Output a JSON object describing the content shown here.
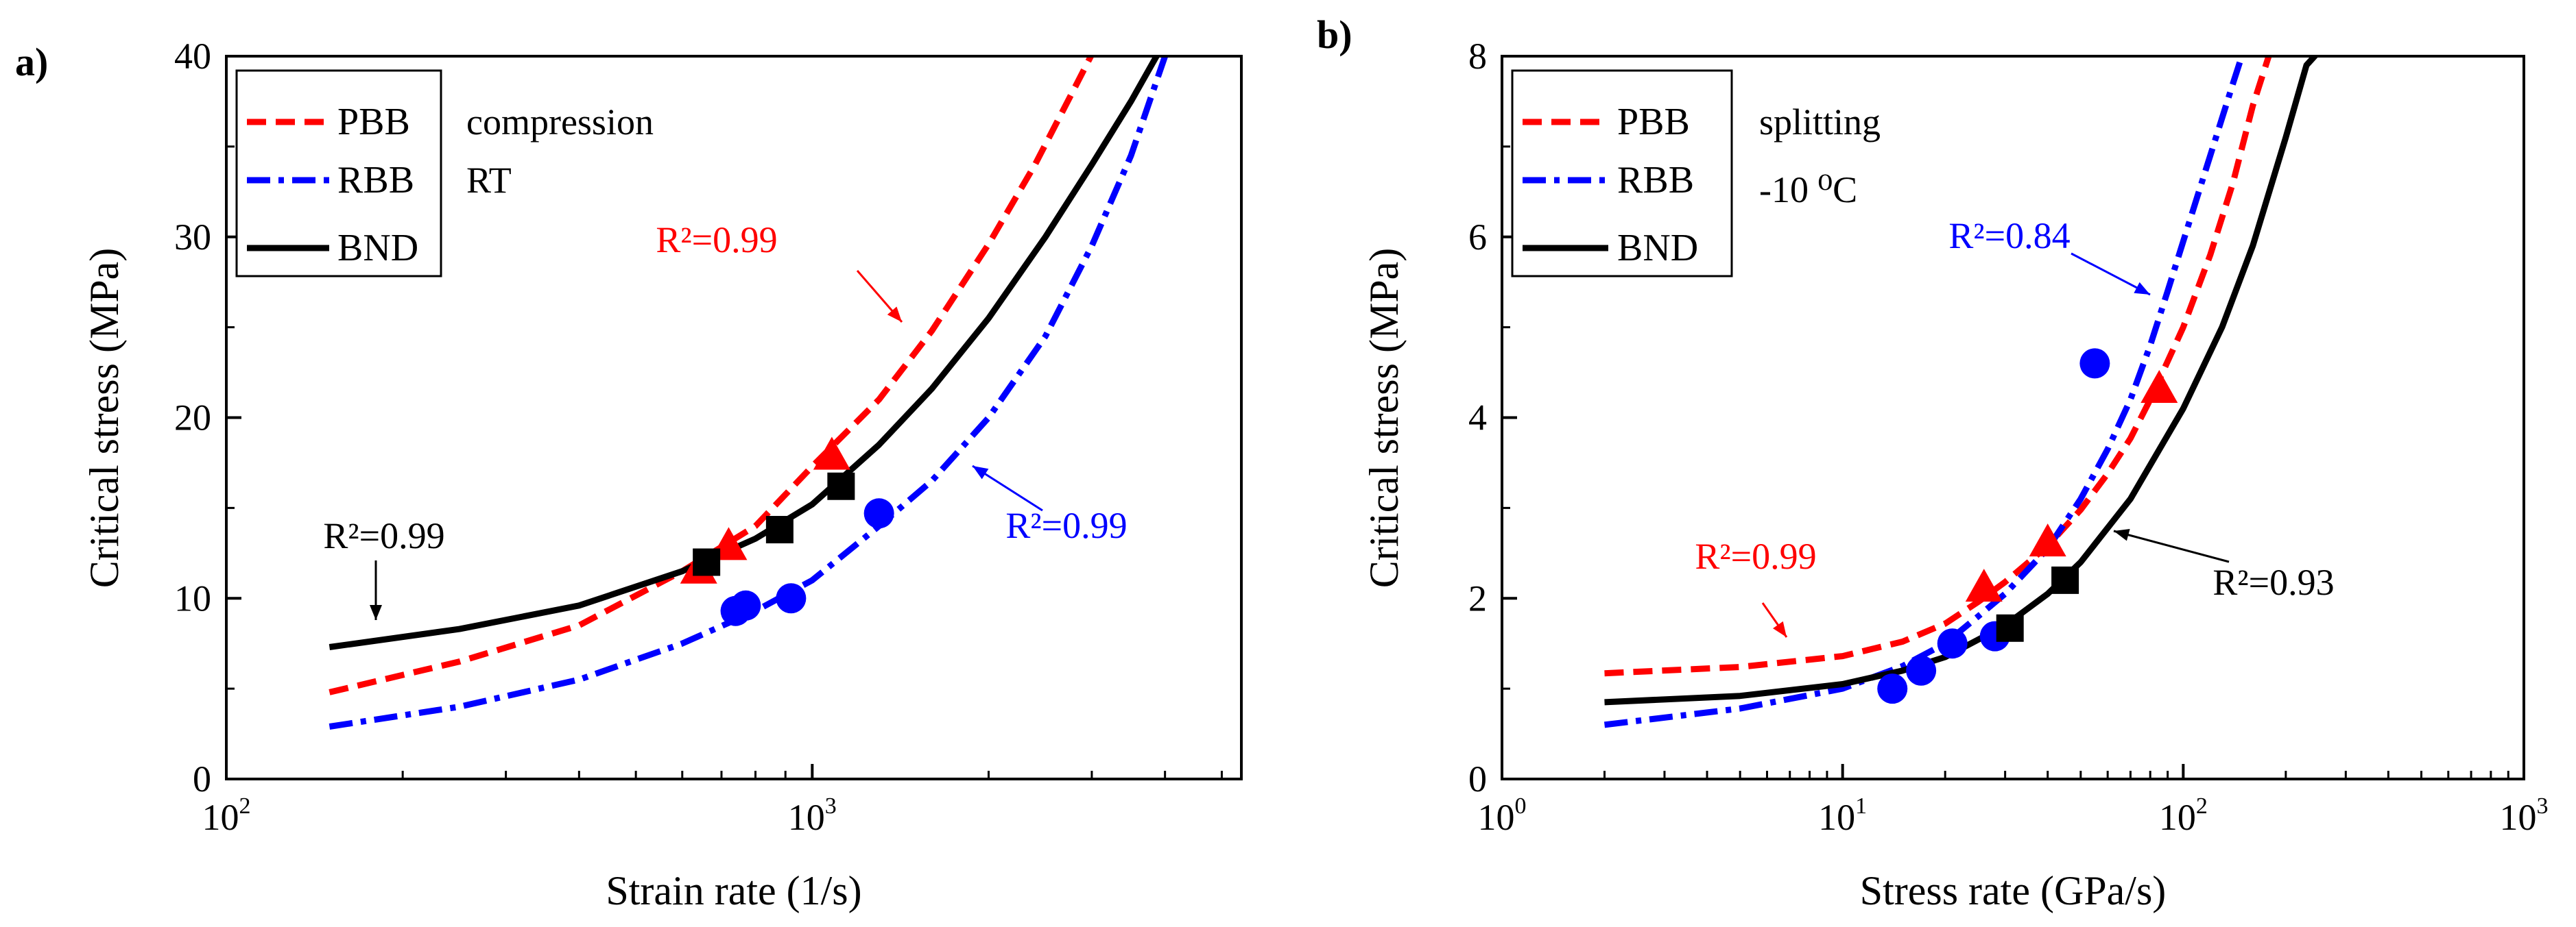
{
  "colors": {
    "PBB": "#ff0000",
    "RBB": "#0000ff",
    "BND": "#000000"
  },
  "chart_data": [
    {
      "type": "line",
      "panel_label": "a)",
      "xlabel": "Strain rate (1/s)",
      "ylabel": "Critical stress (MPa)",
      "xscale": "log",
      "xlim": [
        100,
        5400
      ],
      "ylim": [
        0,
        40
      ],
      "x_ticks": [
        {
          "base": "10",
          "exp": "2",
          "value": 100
        },
        {
          "base": "10",
          "exp": "3",
          "value": 1000
        }
      ],
      "y_ticks": [
        "0",
        "10",
        "20",
        "30",
        "40"
      ],
      "legend": {
        "entries": [
          "PBB",
          "RBB",
          "BND"
        ],
        "placement": "top-left"
      },
      "notes": [
        "compression",
        "RT"
      ],
      "series": [
        {
          "name": "PBB",
          "style": "dash",
          "fit": {
            "x": [
              150,
              250,
              400,
              600,
              800,
              1000,
              1300,
              1600,
              2000,
              2400,
              2800,
              3100
            ],
            "y": [
              4.8,
              6.5,
              8.5,
              11.5,
              14.0,
              17.3,
              21.0,
              24.8,
              29.6,
              34.0,
              38.2,
              41.0
            ]
          },
          "points": {
            "x": [
              640,
              720,
              1080
            ],
            "y": [
              11.5,
              12.8,
              17.8
            ]
          },
          "r2": "R²=0.99"
        },
        {
          "name": "RBB",
          "style": "dashdot",
          "fit": {
            "x": [
              150,
              250,
              400,
              600,
              800,
              1000,
              1300,
              1600,
              2000,
              2500,
              3000,
              3500,
              4000
            ],
            "y": [
              2.9,
              4.0,
              5.5,
              7.5,
              9.3,
              11.0,
              14.0,
              16.5,
              20.0,
              24.5,
              29.5,
              34.5,
              40.0
            ]
          },
          "points": {
            "x": [
              740,
              770,
              920,
              1300
            ],
            "y": [
              9.3,
              9.6,
              10.0,
              14.7
            ]
          },
          "r2": "R²=0.99"
        },
        {
          "name": "BND",
          "style": "solid",
          "fit": {
            "x": [
              150,
              250,
              400,
              600,
              800,
              1000,
              1300,
              1600,
              2000,
              2500,
              3000,
              3500,
              3900
            ],
            "y": [
              7.3,
              8.3,
              9.6,
              11.5,
              13.3,
              15.2,
              18.5,
              21.6,
              25.5,
              30.0,
              34.0,
              37.5,
              40.2
            ]
          },
          "points": {
            "x": [
              660,
              880,
              1120
            ],
            "y": [
              12.0,
              13.8,
              16.2
            ]
          },
          "r2": "R²=0.99"
        }
      ]
    },
    {
      "type": "line",
      "panel_label": "b)",
      "xlabel": "Stress rate (GPa/s)",
      "ylabel": "Critical stress (MPa)",
      "xscale": "log",
      "xlim": [
        1,
        1000
      ],
      "ylim": [
        0,
        8
      ],
      "x_ticks": [
        {
          "base": "10",
          "exp": "0",
          "value": 1
        },
        {
          "base": "10",
          "exp": "1",
          "value": 10
        },
        {
          "base": "10",
          "exp": "2",
          "value": 100
        },
        {
          "base": "10",
          "exp": "3",
          "value": 1000
        }
      ],
      "y_ticks": [
        "0",
        "2",
        "4",
        "6",
        "8"
      ],
      "legend": {
        "entries": [
          "PBB",
          "RBB",
          "BND"
        ],
        "placement": "top-left"
      },
      "notes": [
        "splitting",
        "-10 ⁰C"
      ],
      "series": [
        {
          "name": "PBB",
          "style": "dash",
          "fit": {
            "x": [
              2,
              5,
              10,
              15,
              20,
              25,
              30,
              40,
              50,
              60,
              70,
              80,
              100,
              120,
              140,
              160,
              180
            ],
            "y": [
              1.17,
              1.24,
              1.36,
              1.52,
              1.72,
              1.96,
              2.18,
              2.58,
              2.98,
              3.38,
              3.77,
              4.2,
              5.0,
              5.8,
              6.6,
              7.45,
              8.05
            ]
          },
          "points": {
            "x": [
              26,
              40,
              85
            ],
            "y": [
              2.1,
              2.6,
              4.3
            ]
          },
          "r2": "R²=0.99"
        },
        {
          "name": "RBB",
          "style": "dashdot",
          "fit": {
            "x": [
              2,
              5,
              10,
              15,
              20,
              25,
              30,
              40,
              50,
              60,
              70,
              80,
              90,
              100,
              120,
              140,
              150
            ],
            "y": [
              0.6,
              0.78,
              1.0,
              1.25,
              1.5,
              1.8,
              2.05,
              2.55,
              3.1,
              3.65,
              4.2,
              4.8,
              5.4,
              5.95,
              6.9,
              7.7,
              8.05
            ]
          },
          "points": {
            "x": [
              14,
              17,
              21,
              28,
              55
            ],
            "y": [
              1.0,
              1.2,
              1.5,
              1.58,
              4.6
            ]
          },
          "r2": "R²=0.84"
        },
        {
          "name": "BND",
          "style": "solid",
          "fit": {
            "x": [
              2,
              5,
              10,
              15,
              20,
              30,
              40,
              50,
              70,
              100,
              130,
              160,
              200,
              230,
              250
            ],
            "y": [
              0.85,
              0.92,
              1.05,
              1.2,
              1.35,
              1.7,
              2.05,
              2.4,
              3.1,
              4.1,
              5.0,
              5.9,
              7.1,
              7.9,
              8.05
            ]
          },
          "points": {
            "x": [
              31,
              45
            ],
            "y": [
              1.67,
              2.2
            ]
          },
          "r2": "R²=0.93"
        }
      ]
    }
  ]
}
